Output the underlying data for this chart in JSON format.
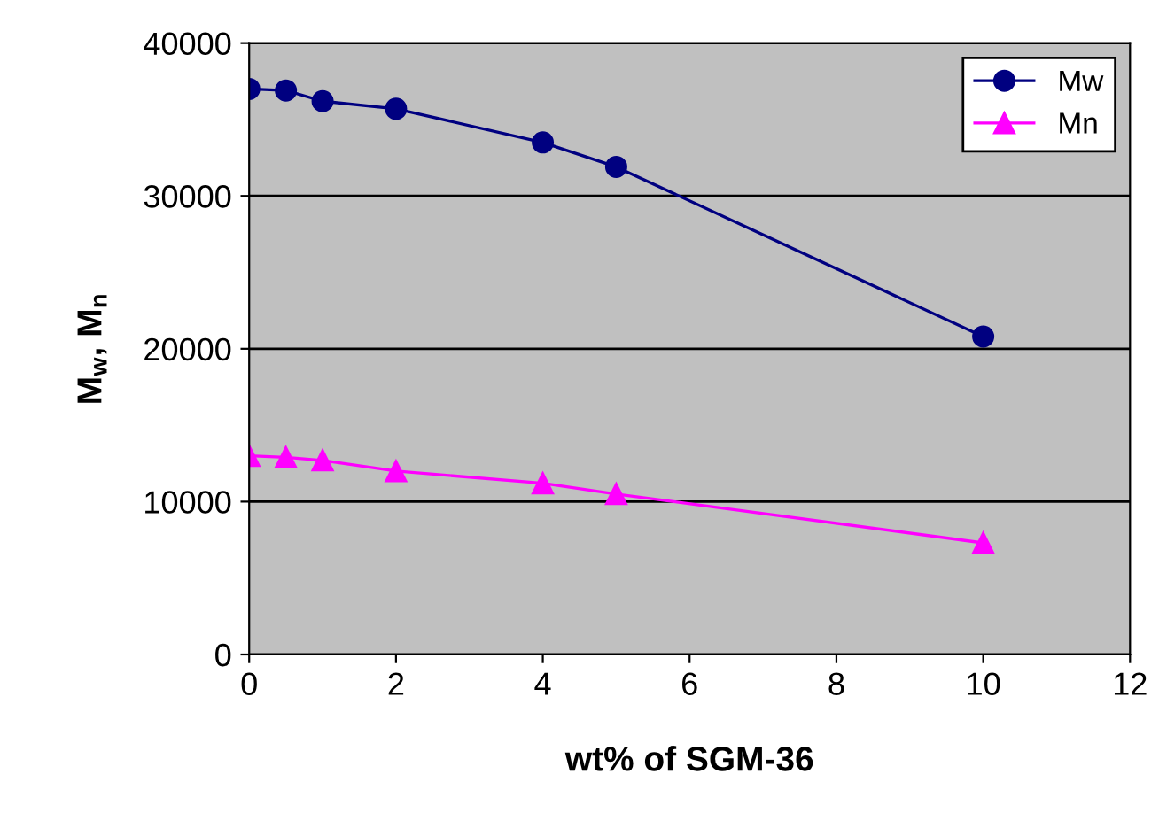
{
  "chart_data": {
    "type": "line",
    "xlabel": "wt% of SGM-36",
    "ylabel": "M$_{w}$, M$_{n}$",
    "x": [
      0,
      0.5,
      1,
      2,
      4,
      5,
      10
    ],
    "series": [
      {
        "name": "Mw",
        "color": "#000080",
        "marker": "circle",
        "values": [
          37000,
          36900,
          36200,
          35700,
          33500,
          31900,
          20800
        ]
      },
      {
        "name": "Mn",
        "color": "#ff00ff",
        "marker": "triangle",
        "values": [
          13000,
          12900,
          12700,
          12000,
          11200,
          10500,
          7300
        ]
      }
    ],
    "xlim": [
      0,
      12
    ],
    "xticks": [
      0,
      2,
      4,
      6,
      8,
      10,
      12
    ],
    "ylim": [
      0,
      40000
    ],
    "yticks": [
      0,
      10000,
      20000,
      30000,
      40000
    ],
    "grid": "y",
    "legend": "top right",
    "line_style": "solid"
  }
}
